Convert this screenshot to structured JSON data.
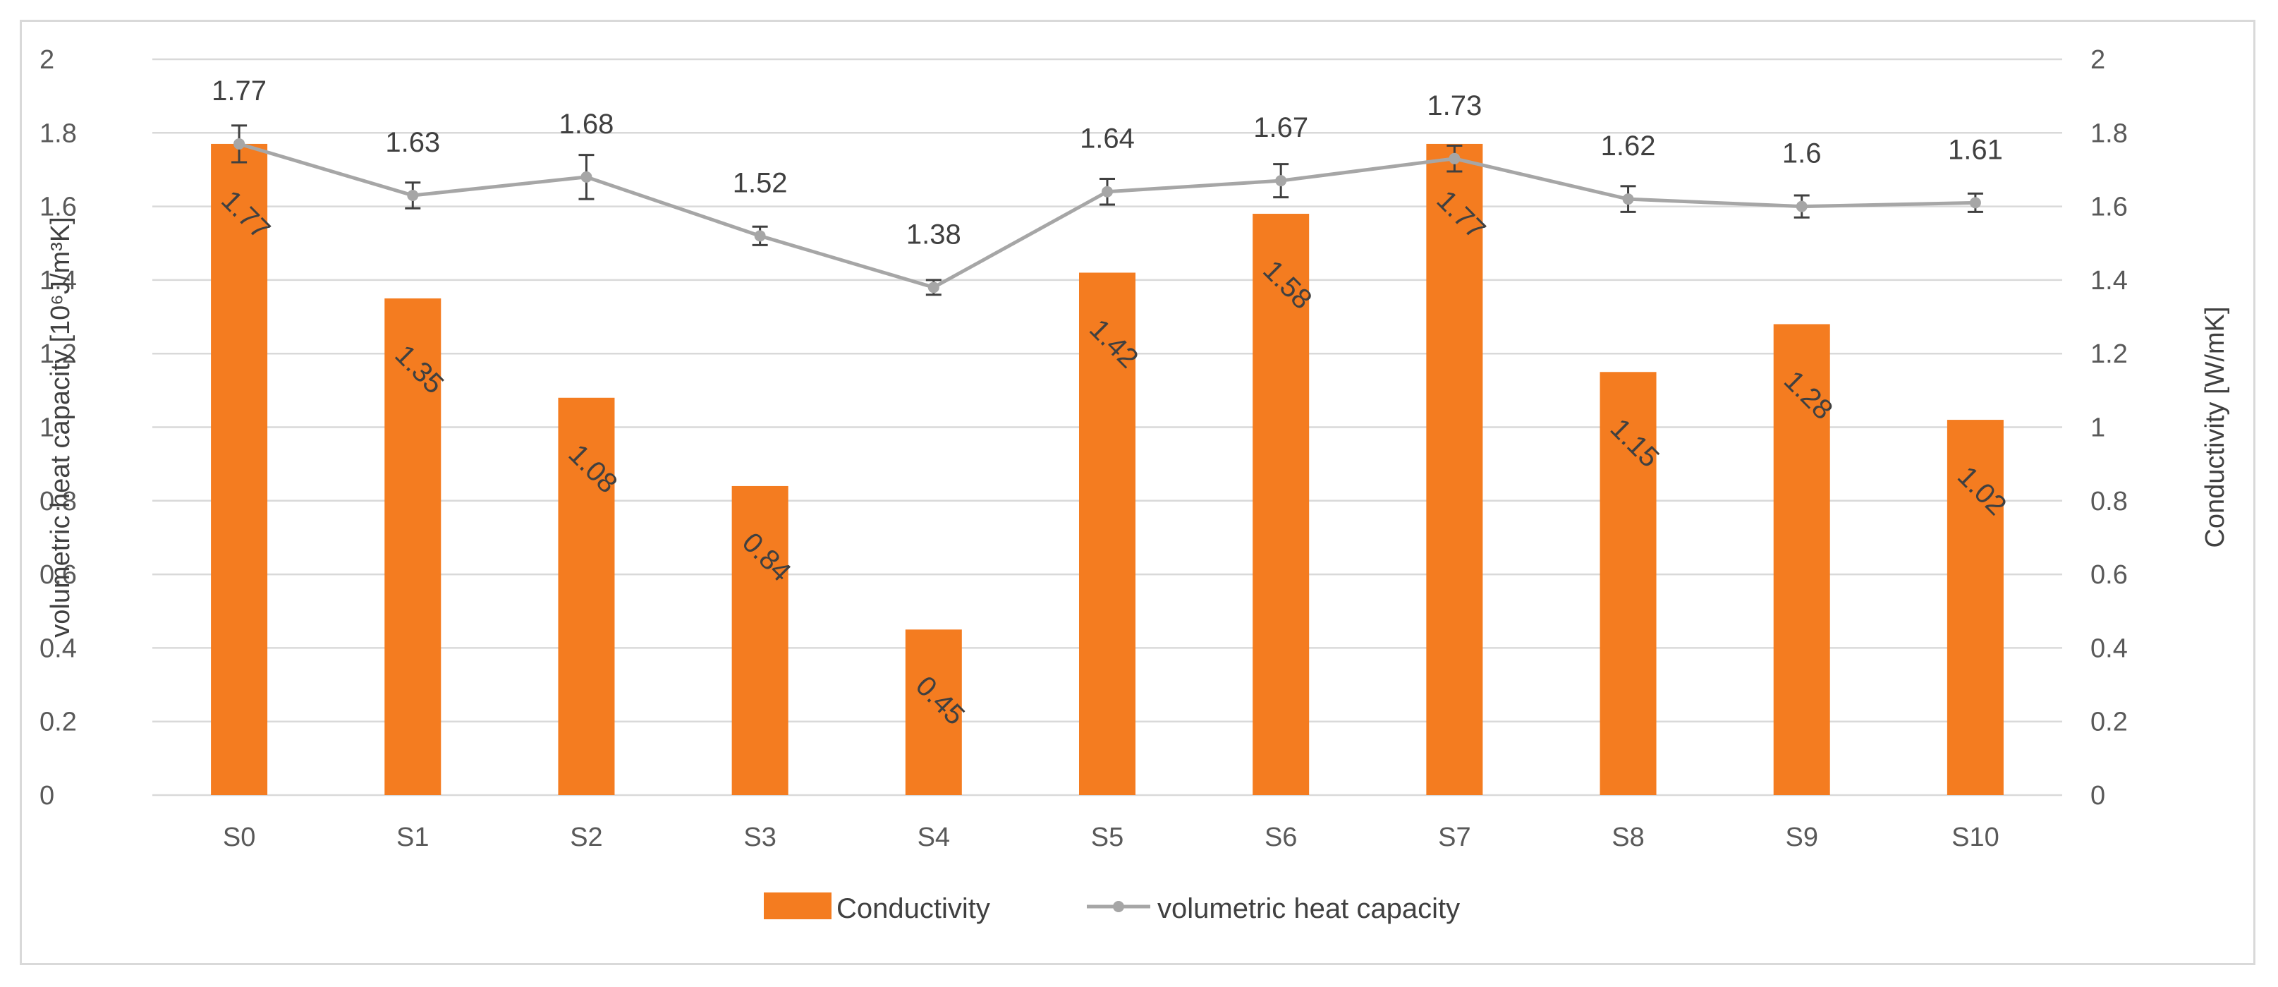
{
  "chart_data": {
    "type": "bar",
    "categories": [
      "S0",
      "S1",
      "S2",
      "S3",
      "S4",
      "S5",
      "S6",
      "S7",
      "S8",
      "S9",
      "S10"
    ],
    "series": [
      {
        "name": "Conductivity",
        "kind": "bar",
        "axis": "right",
        "color": "#f47c20",
        "values": [
          1.77,
          1.35,
          1.08,
          0.84,
          0.45,
          1.42,
          1.58,
          1.77,
          1.15,
          1.28,
          1.02
        ],
        "labels": [
          "1.77",
          "1.35",
          "1.08",
          "0.84",
          "0.45",
          "1.42",
          "1.58",
          "1.77",
          "1.15",
          "1.28",
          "1.02"
        ]
      },
      {
        "name": "volumetric heat capacity",
        "kind": "line",
        "axis": "left",
        "color": "#a6a6a6",
        "values": [
          1.77,
          1.63,
          1.68,
          1.52,
          1.38,
          1.64,
          1.67,
          1.73,
          1.62,
          1.6,
          1.61
        ],
        "labels": [
          "1.77",
          "1.63",
          "1.68",
          "1.52",
          "1.38",
          "1.64",
          "1.67",
          "1.73",
          "1.62",
          "1.6",
          "1.61"
        ],
        "error": [
          0.05,
          0.035,
          0.06,
          0.025,
          0.02,
          0.035,
          0.045,
          0.035,
          0.035,
          0.03,
          0.025
        ]
      }
    ],
    "y_left": {
      "label": "volumetric heat capacity [10⁶J/m³K]",
      "ylim": [
        0,
        2
      ],
      "ticks": [
        "0",
        "0.2",
        "0.4",
        "0.6",
        "0.8",
        "1",
        "1.2",
        "1.4",
        "1.6",
        "1.8",
        "2"
      ]
    },
    "y_right": {
      "label": "Conductivity [W/mK]",
      "ylim": [
        0,
        2
      ],
      "ticks": [
        "0",
        "0.2",
        "0.4",
        "0.6",
        "0.8",
        "1",
        "1.2",
        "1.4",
        "1.6",
        "1.8",
        "2"
      ]
    },
    "grid": true,
    "legend": "bottom-center"
  }
}
